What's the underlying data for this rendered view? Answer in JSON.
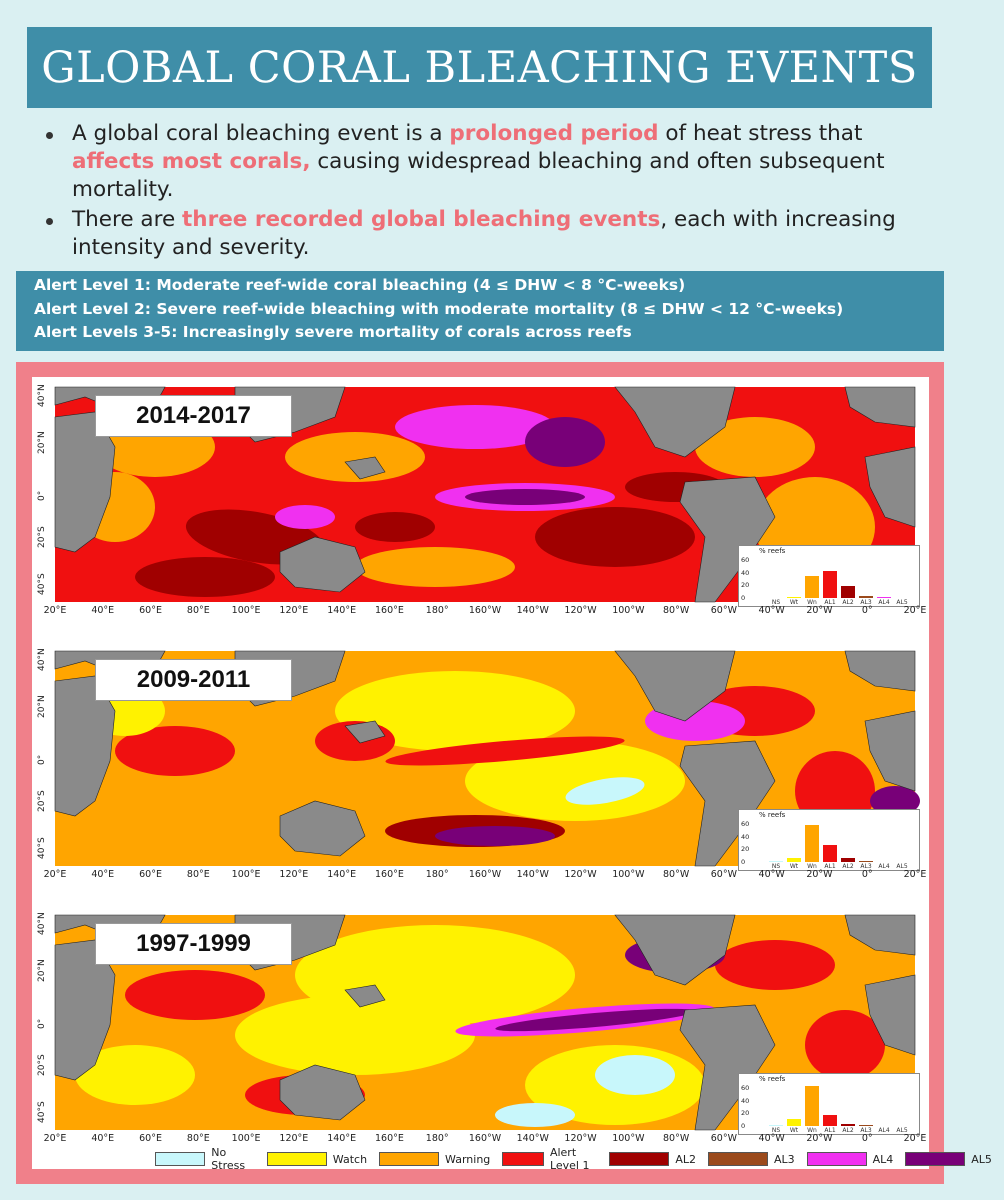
{
  "title": "GLOBAL CORAL BLEACHING EVENTS",
  "bullets": [
    {
      "segments": [
        {
          "text": "A global coral bleaching event is a ",
          "hl": false
        },
        {
          "text": "prolonged period",
          "hl": true
        },
        {
          "text": " of heat stress that ",
          "hl": false
        },
        {
          "text": "affects most corals,",
          "hl": true
        },
        {
          "text": " causing widespread bleaching and often subsequent mortality.",
          "hl": false
        }
      ]
    },
    {
      "segments": [
        {
          "text": "There are ",
          "hl": false
        },
        {
          "text": "three recorded global bleaching events",
          "hl": true
        },
        {
          "text": ", each with increasing intensity and severity.",
          "hl": false
        }
      ]
    }
  ],
  "alerts": [
    "Alert Level 1: Moderate reef-wide coral bleaching (4 ≤ DHW < 8 °C-weeks)",
    "Alert Level 2: Severe reef-wide bleaching with moderate mortality (8 ≤ DHW < 12 °C-weeks)",
    "Alert Levels 3-5: Increasingly severe mortality of corals across reefs"
  ],
  "lat_labels": [
    "40°N",
    "20°N",
    "0°",
    "20°S",
    "40°S"
  ],
  "lon_labels": [
    "20°E",
    "40°E",
    "60°E",
    "80°E",
    "100°E",
    "120°E",
    "140°E",
    "160°E",
    "180°",
    "160°W",
    "140°W",
    "120°W",
    "100°W",
    "80°W",
    "60°W",
    "40°W",
    "20°W",
    "0°",
    "20°E"
  ],
  "colors": {
    "No Stress": "#c8f7fb",
    "Watch": "#fff200",
    "Warning": "#ffa500",
    "Alert Level 1": "#f01010",
    "AL2": "#a00000",
    "AL3": "#9b4a1c",
    "AL4": "#f030f0",
    "AL5": "#780078",
    "land": "#8a8a8a"
  },
  "legend": [
    "No Stress",
    "Watch",
    "Warning",
    "Alert Level 1",
    "AL2",
    "AL3",
    "AL4",
    "AL5"
  ],
  "maps": [
    {
      "period": "2014-2017",
      "inset": {
        "title": "% reefs",
        "yticks": [
          "60",
          "40",
          "20",
          "0"
        ],
        "categories": [
          "NS",
          "Wt",
          "Wn",
          "AL1",
          "AL2",
          "AL3",
          "AL4",
          "AL5"
        ],
        "values": [
          0,
          1,
          34,
          42,
          19,
          3,
          1,
          0
        ]
      }
    },
    {
      "period": "2009-2011",
      "inset": {
        "title": "% reefs",
        "yticks": [
          "60",
          "40",
          "20",
          "0"
        ],
        "categories": [
          "NS",
          "Wt",
          "Wn",
          "AL1",
          "AL2",
          "AL3",
          "AL4",
          "AL5"
        ],
        "values": [
          1,
          7,
          58,
          27,
          7,
          1,
          0,
          0
        ]
      }
    },
    {
      "period": "1997-1999",
      "inset": {
        "title": "% reefs",
        "yticks": [
          "60",
          "40",
          "20",
          "0"
        ],
        "categories": [
          "NS",
          "Wt",
          "Wn",
          "AL1",
          "AL2",
          "AL3",
          "AL4",
          "AL5"
        ],
        "values": [
          1,
          11,
          63,
          18,
          3,
          1,
          0,
          0
        ]
      }
    }
  ]
}
